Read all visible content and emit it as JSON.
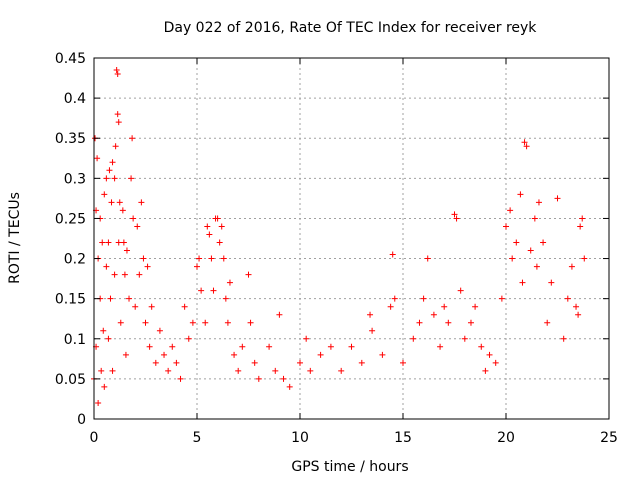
{
  "chart_data": {
    "type": "scatter",
    "title": "Day 022 of 2016, Rate Of TEC Index for receiver reyk",
    "xlabel": "GPS time / hours",
    "ylabel": "ROTI / TECUs",
    "xlim": [
      0,
      25
    ],
    "ylim": [
      0,
      0.45
    ],
    "xticks": [
      0,
      5,
      10,
      15,
      20,
      25
    ],
    "yticks": [
      0,
      0.05,
      0.1,
      0.15,
      0.2,
      0.25,
      0.3,
      0.35,
      0.4,
      0.45
    ],
    "xtick_labels": [
      "0",
      "5",
      "10",
      "15",
      "20",
      "25"
    ],
    "ytick_labels": [
      "0",
      "0.05",
      "0.1",
      "0.15",
      "0.2",
      "0.25",
      "0.3",
      "0.35",
      "0.4",
      "0.45"
    ],
    "grid": true,
    "marker": "+",
    "color": "#ff0000",
    "series": [
      {
        "name": "ROTI",
        "points": [
          [
            0.0,
            0.05
          ],
          [
            0.05,
            0.35
          ],
          [
            0.1,
            0.26
          ],
          [
            0.1,
            0.09
          ],
          [
            0.15,
            0.325
          ],
          [
            0.2,
            0.2
          ],
          [
            0.2,
            0.02
          ],
          [
            0.3,
            0.25
          ],
          [
            0.3,
            0.15
          ],
          [
            0.35,
            0.06
          ],
          [
            0.4,
            0.22
          ],
          [
            0.45,
            0.11
          ],
          [
            0.5,
            0.28
          ],
          [
            0.5,
            0.04
          ],
          [
            0.6,
            0.3
          ],
          [
            0.6,
            0.19
          ],
          [
            0.7,
            0.22
          ],
          [
            0.7,
            0.1
          ],
          [
            0.75,
            0.31
          ],
          [
            0.8,
            0.15
          ],
          [
            0.85,
            0.27
          ],
          [
            0.9,
            0.32
          ],
          [
            0.9,
            0.06
          ],
          [
            1.0,
            0.3
          ],
          [
            1.0,
            0.18
          ],
          [
            1.05,
            0.34
          ],
          [
            1.1,
            0.435
          ],
          [
            1.15,
            0.43
          ],
          [
            1.15,
            0.38
          ],
          [
            1.2,
            0.37
          ],
          [
            1.2,
            0.22
          ],
          [
            1.25,
            0.27
          ],
          [
            1.3,
            0.12
          ],
          [
            1.4,
            0.26
          ],
          [
            1.45,
            0.22
          ],
          [
            1.5,
            0.18
          ],
          [
            1.55,
            0.08
          ],
          [
            1.6,
            0.21
          ],
          [
            1.7,
            0.15
          ],
          [
            1.8,
            0.3
          ],
          [
            1.85,
            0.35
          ],
          [
            1.9,
            0.25
          ],
          [
            2.0,
            0.14
          ],
          [
            2.1,
            0.24
          ],
          [
            2.2,
            0.18
          ],
          [
            2.3,
            0.27
          ],
          [
            2.4,
            0.2
          ],
          [
            2.5,
            0.12
          ],
          [
            2.6,
            0.19
          ],
          [
            2.7,
            0.09
          ],
          [
            2.8,
            0.14
          ],
          [
            3.0,
            0.07
          ],
          [
            3.2,
            0.11
          ],
          [
            3.4,
            0.08
          ],
          [
            3.6,
            0.06
          ],
          [
            3.8,
            0.09
          ],
          [
            4.0,
            0.07
          ],
          [
            4.2,
            0.05
          ],
          [
            4.4,
            0.14
          ],
          [
            4.6,
            0.1
          ],
          [
            4.8,
            0.12
          ],
          [
            5.0,
            0.19
          ],
          [
            5.1,
            0.2
          ],
          [
            5.2,
            0.16
          ],
          [
            5.4,
            0.12
          ],
          [
            5.5,
            0.24
          ],
          [
            5.6,
            0.23
          ],
          [
            5.7,
            0.2
          ],
          [
            5.8,
            0.16
          ],
          [
            5.9,
            0.25
          ],
          [
            6.0,
            0.25
          ],
          [
            6.1,
            0.22
          ],
          [
            6.2,
            0.24
          ],
          [
            6.3,
            0.2
          ],
          [
            6.4,
            0.15
          ],
          [
            6.5,
            0.12
          ],
          [
            6.6,
            0.17
          ],
          [
            6.8,
            0.08
          ],
          [
            7.0,
            0.06
          ],
          [
            7.2,
            0.09
          ],
          [
            7.5,
            0.18
          ],
          [
            7.6,
            0.12
          ],
          [
            7.8,
            0.07
          ],
          [
            8.0,
            0.05
          ],
          [
            8.5,
            0.09
          ],
          [
            8.8,
            0.06
          ],
          [
            9.0,
            0.13
          ],
          [
            9.2,
            0.05
          ],
          [
            9.5,
            0.04
          ],
          [
            10.0,
            0.07
          ],
          [
            10.3,
            0.1
          ],
          [
            10.5,
            0.06
          ],
          [
            11.0,
            0.08
          ],
          [
            11.5,
            0.09
          ],
          [
            12.0,
            0.06
          ],
          [
            12.5,
            0.09
          ],
          [
            13.0,
            0.07
          ],
          [
            13.4,
            0.13
          ],
          [
            13.5,
            0.11
          ],
          [
            14.0,
            0.08
          ],
          [
            14.4,
            0.14
          ],
          [
            14.5,
            0.205
          ],
          [
            14.6,
            0.15
          ],
          [
            15.0,
            0.07
          ],
          [
            15.5,
            0.1
          ],
          [
            15.8,
            0.12
          ],
          [
            16.0,
            0.15
          ],
          [
            16.2,
            0.2
          ],
          [
            16.5,
            0.13
          ],
          [
            16.8,
            0.09
          ],
          [
            17.0,
            0.14
          ],
          [
            17.2,
            0.12
          ],
          [
            17.5,
            0.255
          ],
          [
            17.6,
            0.25
          ],
          [
            17.8,
            0.16
          ],
          [
            18.0,
            0.1
          ],
          [
            18.3,
            0.12
          ],
          [
            18.5,
            0.14
          ],
          [
            18.8,
            0.09
          ],
          [
            19.0,
            0.06
          ],
          [
            19.2,
            0.08
          ],
          [
            19.5,
            0.07
          ],
          [
            19.8,
            0.15
          ],
          [
            20.0,
            0.24
          ],
          [
            20.2,
            0.26
          ],
          [
            20.3,
            0.2
          ],
          [
            20.5,
            0.22
          ],
          [
            20.7,
            0.28
          ],
          [
            20.8,
            0.17
          ],
          [
            20.9,
            0.345
          ],
          [
            21.0,
            0.34
          ],
          [
            21.2,
            0.21
          ],
          [
            21.4,
            0.25
          ],
          [
            21.5,
            0.19
          ],
          [
            21.6,
            0.27
          ],
          [
            21.8,
            0.22
          ],
          [
            22.0,
            0.12
          ],
          [
            22.2,
            0.17
          ],
          [
            22.5,
            0.275
          ],
          [
            22.8,
            0.1
          ],
          [
            23.0,
            0.15
          ],
          [
            23.2,
            0.19
          ],
          [
            23.4,
            0.14
          ],
          [
            23.5,
            0.13
          ],
          [
            23.6,
            0.24
          ],
          [
            23.7,
            0.25
          ],
          [
            23.8,
            0.2
          ]
        ]
      }
    ]
  }
}
